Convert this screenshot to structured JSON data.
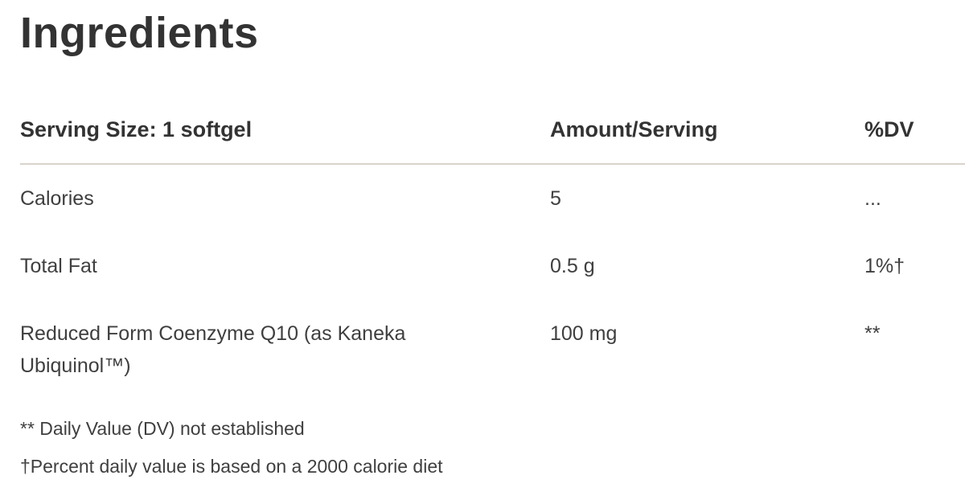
{
  "page": {
    "title": "Ingredients"
  },
  "table": {
    "headers": {
      "serving": "Serving Size: 1 softgel",
      "amount": "Amount/Serving",
      "dv": "%DV"
    },
    "rows": [
      {
        "name": "Calories",
        "amount": "5",
        "dv": "..."
      },
      {
        "name": "Total Fat",
        "amount": "0.5 g",
        "dv": "1%†"
      },
      {
        "name": "Reduced Form Coenzyme Q10 (as Kaneka Ubiquinol™)",
        "amount": "100 mg",
        "dv": "**"
      }
    ],
    "footnotes": [
      "** Daily Value (DV) not established",
      "†Percent daily value is based on a 2000 calorie diet"
    ]
  },
  "colors": {
    "heading_text": "#333333",
    "body_text": "#3f3f3f",
    "divider": "#d9d3cc",
    "background": "#ffffff"
  }
}
